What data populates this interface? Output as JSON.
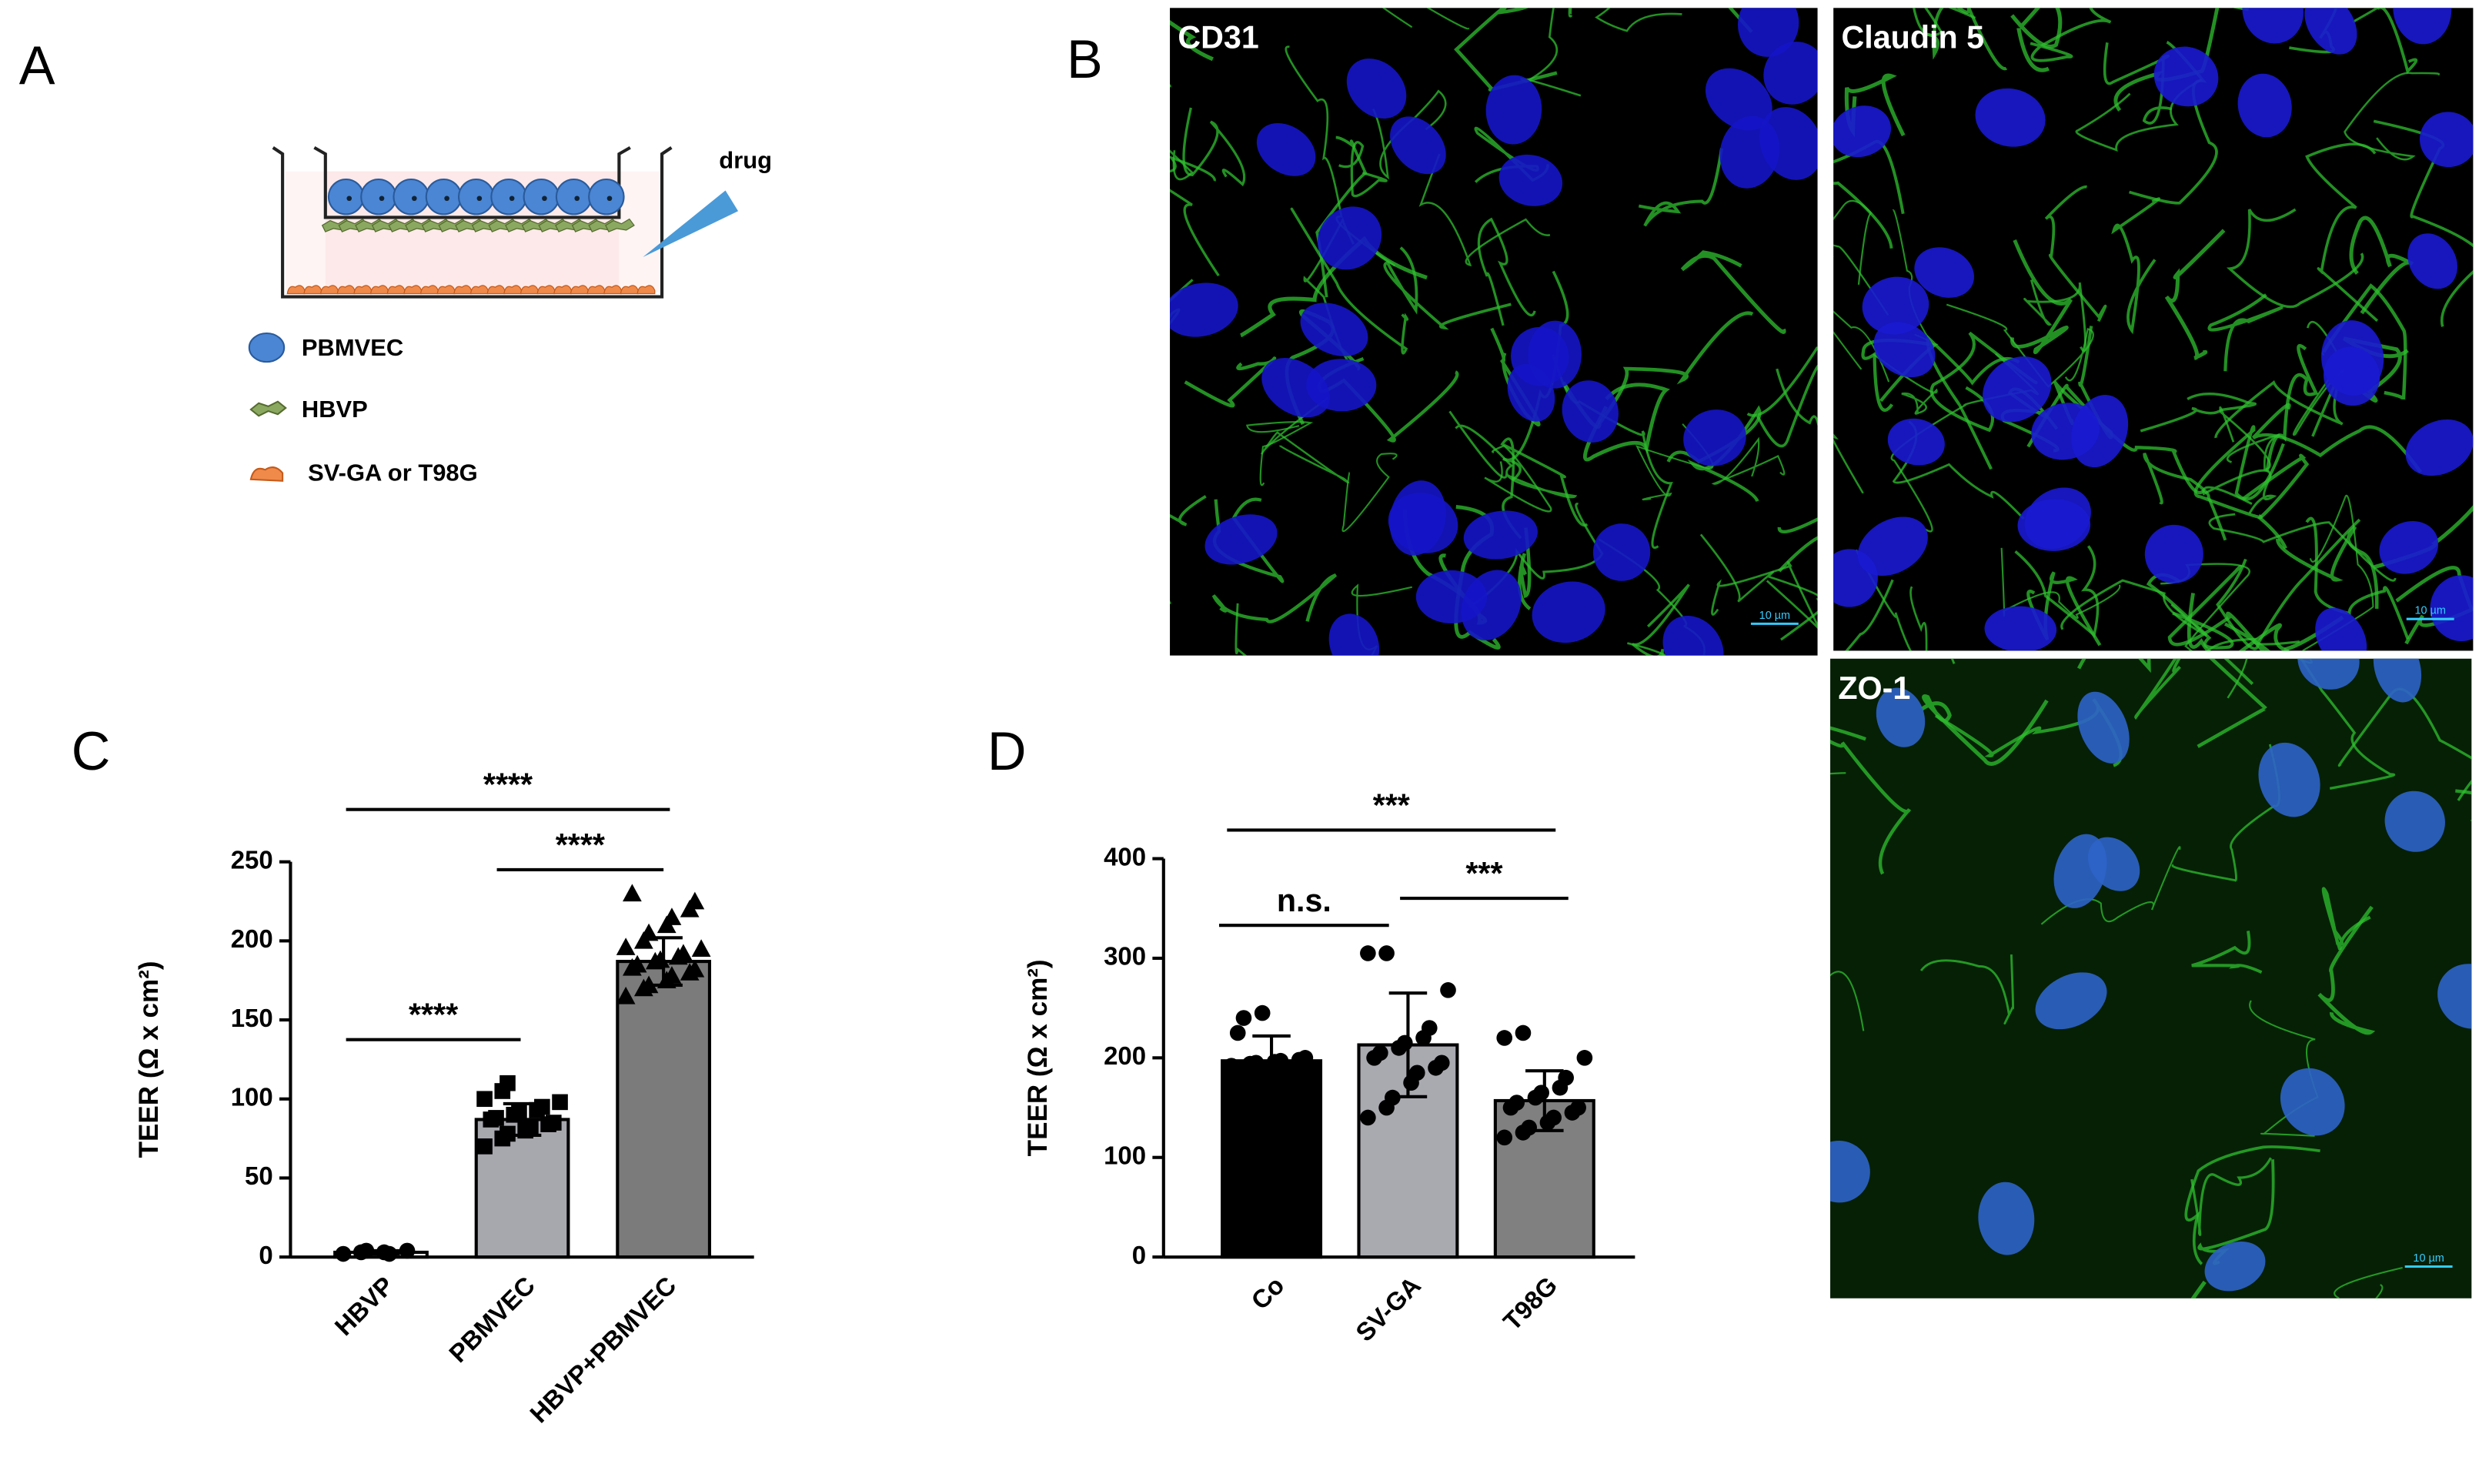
{
  "panels": {
    "a": "A",
    "b": "B",
    "c": "C",
    "d": "D"
  },
  "diagram": {
    "drug": "drug",
    "legend": [
      "PBMVEC",
      "HBVP",
      "SV-GA or T98G"
    ]
  },
  "images": [
    {
      "label": "CD31",
      "scale": "10 µm"
    },
    {
      "label": "Claudin 5",
      "scale": "10 µm"
    },
    {
      "label": "ZO-1",
      "scale": "10 µm"
    }
  ],
  "chart_data": [
    {
      "type": "bar",
      "ylabel": "TEER (Ω x cm²)",
      "categories": [
        "HBVP",
        "PBMVEC",
        "HBVP+PBMVEC"
      ],
      "values": [
        3,
        87,
        187
      ],
      "errors": [
        1,
        10,
        15
      ],
      "colors": [
        "#ffffff",
        "#a7a7ae",
        "#7b7b7b"
      ],
      "markers": [
        "circle",
        "square",
        "triangle"
      ],
      "points": [
        [
          2,
          3,
          4,
          3,
          2,
          4
        ],
        [
          70,
          75,
          78,
          80,
          82,
          84,
          85,
          87,
          88,
          90,
          92,
          93,
          95,
          98,
          100,
          105,
          110
        ],
        [
          165,
          170,
          172,
          175,
          178,
          180,
          182,
          183,
          185,
          187,
          188,
          190,
          192,
          195,
          196,
          200,
          205,
          210,
          215,
          220,
          225,
          230
        ]
      ],
      "ylim": [
        0,
        250
      ],
      "yticks": [
        0,
        50,
        100,
        150,
        200,
        250
      ],
      "significance": [
        {
          "label": "****",
          "pair": [
            0,
            1
          ]
        },
        {
          "label": "****",
          "pair": [
            1,
            2
          ]
        },
        {
          "label": "****",
          "pair": [
            0,
            2
          ]
        }
      ]
    },
    {
      "type": "bar",
      "ylabel": "TEER (Ω x cm²)",
      "categories": [
        "Co",
        "SV-GA",
        "T98G"
      ],
      "values": [
        197,
        213,
        157
      ],
      "errors": [
        25,
        52,
        30
      ],
      "colors": [
        "#000000",
        "#a9a9b0",
        "#808080"
      ],
      "markers": [
        "circle",
        "circle",
        "circle"
      ],
      "points": [
        [
          192,
          194,
          195,
          196,
          197,
          198,
          200,
          225,
          240,
          245
        ],
        [
          140,
          150,
          160,
          175,
          185,
          190,
          195,
          200,
          205,
          210,
          215,
          220,
          230,
          268,
          305,
          305
        ],
        [
          120,
          125,
          130,
          135,
          140,
          145,
          150,
          150,
          155,
          160,
          165,
          170,
          180,
          200,
          220,
          225
        ]
      ],
      "ylim": [
        0,
        400
      ],
      "yticks": [
        0,
        100,
        200,
        300,
        400
      ],
      "significance": [
        {
          "label": "n.s.",
          "pair": [
            0,
            1
          ]
        },
        {
          "label": "***",
          "pair": [
            1,
            2
          ]
        },
        {
          "label": "***",
          "pair": [
            0,
            2
          ]
        }
      ]
    }
  ]
}
